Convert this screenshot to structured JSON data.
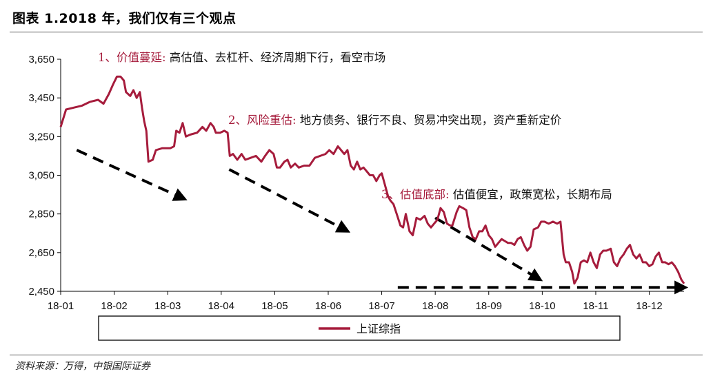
{
  "title": "图表 1.2018 年，我们仅有三个观点",
  "source": "资料来源：万得，中银国际证券",
  "colors": {
    "series": "#a61c3c",
    "arrow": "#000000",
    "rule": "#555555"
  },
  "chart_data": {
    "type": "line",
    "ylim": [
      2450,
      3650
    ],
    "yticks": [
      "2,450",
      "2,650",
      "2,850",
      "3,050",
      "3,250",
      "3,450",
      "3,650"
    ],
    "ytick_values": [
      2450,
      2650,
      2850,
      3050,
      3250,
      3450,
      3650
    ],
    "xticks": [
      "18-01",
      "18-02",
      "18-03",
      "18-04",
      "18-05",
      "18-06",
      "18-07",
      "18-08",
      "18-09",
      "18-10",
      "18-11",
      "18-12"
    ],
    "x_month_range": [
      0,
      11.65
    ],
    "grid": false,
    "legend": {
      "position": "bottom",
      "label": "上证综指"
    },
    "series": [
      {
        "name": "上证综指",
        "color": "#a61c3c",
        "points": [
          [
            0.0,
            3300
          ],
          [
            0.1,
            3390
          ],
          [
            0.25,
            3400
          ],
          [
            0.4,
            3410
          ],
          [
            0.55,
            3430
          ],
          [
            0.7,
            3440
          ],
          [
            0.8,
            3420
          ],
          [
            0.9,
            3470
          ],
          [
            0.98,
            3520
          ],
          [
            1.05,
            3560
          ],
          [
            1.12,
            3560
          ],
          [
            1.18,
            3540
          ],
          [
            1.22,
            3480
          ],
          [
            1.3,
            3460
          ],
          [
            1.36,
            3490
          ],
          [
            1.42,
            3450
          ],
          [
            1.48,
            3480
          ],
          [
            1.52,
            3400
          ],
          [
            1.56,
            3330
          ],
          [
            1.6,
            3280
          ],
          [
            1.64,
            3120
          ],
          [
            1.72,
            3130
          ],
          [
            1.78,
            3180
          ],
          [
            1.9,
            3190
          ],
          [
            2.05,
            3190
          ],
          [
            2.12,
            3200
          ],
          [
            2.16,
            3280
          ],
          [
            2.22,
            3270
          ],
          [
            2.28,
            3320
          ],
          [
            2.34,
            3250
          ],
          [
            2.42,
            3260
          ],
          [
            2.55,
            3270
          ],
          [
            2.65,
            3300
          ],
          [
            2.72,
            3280
          ],
          [
            2.8,
            3320
          ],
          [
            2.86,
            3300
          ],
          [
            2.9,
            3270
          ],
          [
            2.98,
            3270
          ],
          [
            3.06,
            3280
          ],
          [
            3.12,
            3270
          ],
          [
            3.16,
            3150
          ],
          [
            3.22,
            3160
          ],
          [
            3.3,
            3130
          ],
          [
            3.38,
            3160
          ],
          [
            3.45,
            3130
          ],
          [
            3.55,
            3140
          ],
          [
            3.65,
            3150
          ],
          [
            3.75,
            3120
          ],
          [
            3.82,
            3150
          ],
          [
            3.9,
            3180
          ],
          [
            3.98,
            3160
          ],
          [
            4.04,
            3090
          ],
          [
            4.1,
            3090
          ],
          [
            4.18,
            3120
          ],
          [
            4.24,
            3130
          ],
          [
            4.3,
            3090
          ],
          [
            4.38,
            3110
          ],
          [
            4.45,
            3090
          ],
          [
            4.55,
            3100
          ],
          [
            4.65,
            3100
          ],
          [
            4.75,
            3140
          ],
          [
            4.85,
            3150
          ],
          [
            4.95,
            3160
          ],
          [
            5.02,
            3180
          ],
          [
            5.1,
            3160
          ],
          [
            5.18,
            3200
          ],
          [
            5.24,
            3180
          ],
          [
            5.3,
            3160
          ],
          [
            5.36,
            3180
          ],
          [
            5.42,
            3100
          ],
          [
            5.48,
            3080
          ],
          [
            5.54,
            3120
          ],
          [
            5.6,
            3080
          ],
          [
            5.66,
            3090
          ],
          [
            5.72,
            3070
          ],
          [
            5.78,
            3050
          ],
          [
            5.84,
            3050
          ],
          [
            5.9,
            3020
          ],
          [
            5.96,
            3050
          ],
          [
            6.0,
            3060
          ],
          [
            6.04,
            3020
          ],
          [
            6.08,
            2980
          ],
          [
            6.12,
            2940
          ],
          [
            6.16,
            2920
          ],
          [
            6.22,
            2900
          ],
          [
            6.28,
            2850
          ],
          [
            6.35,
            2790
          ],
          [
            6.4,
            2780
          ],
          [
            6.45,
            2850
          ],
          [
            6.52,
            2760
          ],
          [
            6.58,
            2740
          ],
          [
            6.65,
            2830
          ],
          [
            6.72,
            2820
          ],
          [
            6.8,
            2840
          ],
          [
            6.86,
            2800
          ],
          [
            6.92,
            2780
          ],
          [
            6.98,
            2800
          ],
          [
            7.04,
            2820
          ],
          [
            7.1,
            2880
          ],
          [
            7.16,
            2860
          ],
          [
            7.22,
            2800
          ],
          [
            7.28,
            2790
          ],
          [
            7.32,
            2790
          ],
          [
            7.4,
            2860
          ],
          [
            7.45,
            2890
          ],
          [
            7.52,
            2880
          ],
          [
            7.58,
            2870
          ],
          [
            7.64,
            2780
          ],
          [
            7.7,
            2730
          ],
          [
            7.76,
            2720
          ],
          [
            7.82,
            2760
          ],
          [
            7.88,
            2760
          ],
          [
            7.94,
            2790
          ],
          [
            8.0,
            2740
          ],
          [
            8.06,
            2720
          ],
          [
            8.12,
            2680
          ],
          [
            8.18,
            2700
          ],
          [
            8.24,
            2720
          ],
          [
            8.3,
            2710
          ],
          [
            8.36,
            2700
          ],
          [
            8.42,
            2700
          ],
          [
            8.48,
            2690
          ],
          [
            8.54,
            2720
          ],
          [
            8.6,
            2730
          ],
          [
            8.66,
            2690
          ],
          [
            8.72,
            2660
          ],
          [
            8.78,
            2680
          ],
          [
            8.84,
            2770
          ],
          [
            8.92,
            2780
          ],
          [
            8.98,
            2810
          ],
          [
            9.04,
            2810
          ],
          [
            9.12,
            2800
          ],
          [
            9.2,
            2810
          ],
          [
            9.28,
            2800
          ],
          [
            9.34,
            2810
          ],
          [
            9.4,
            2640
          ],
          [
            9.44,
            2600
          ],
          [
            9.5,
            2600
          ],
          [
            9.56,
            2550
          ],
          [
            9.6,
            2490
          ],
          [
            9.66,
            2520
          ],
          [
            9.72,
            2600
          ],
          [
            9.78,
            2610
          ],
          [
            9.84,
            2600
          ],
          [
            9.9,
            2650
          ],
          [
            9.96,
            2600
          ],
          [
            10.02,
            2570
          ],
          [
            10.08,
            2640
          ],
          [
            10.14,
            2660
          ],
          [
            10.2,
            2660
          ],
          [
            10.28,
            2670
          ],
          [
            10.34,
            2600
          ],
          [
            10.4,
            2580
          ],
          [
            10.46,
            2620
          ],
          [
            10.52,
            2640
          ],
          [
            10.58,
            2670
          ],
          [
            10.64,
            2690
          ],
          [
            10.7,
            2640
          ],
          [
            10.76,
            2620
          ],
          [
            10.82,
            2640
          ],
          [
            10.88,
            2600
          ],
          [
            10.94,
            2600
          ],
          [
            11.0,
            2580
          ],
          [
            11.06,
            2590
          ],
          [
            11.12,
            2630
          ],
          [
            11.18,
            2650
          ],
          [
            11.24,
            2600
          ],
          [
            11.3,
            2600
          ],
          [
            11.36,
            2590
          ],
          [
            11.42,
            2600
          ],
          [
            11.48,
            2580
          ],
          [
            11.54,
            2550
          ],
          [
            11.6,
            2510
          ],
          [
            11.65,
            2490
          ]
        ]
      }
    ],
    "annotations": [
      {
        "prefix": "1、价值蔓延:",
        "text": " 高估值、去杠杆、经济周期下行，看空市场"
      },
      {
        "prefix": "2、风险重估:",
        "text": " 地方债务、银行不良、贸易冲突出现，资产重新定价"
      },
      {
        "prefix": "3、估值底部:",
        "text": " 估值便宜，政策宽松，长期布局"
      }
    ],
    "trend_arrows": [
      {
        "from": [
          0.3,
          3180
        ],
        "to": [
          2.25,
          2935
        ]
      },
      {
        "from": [
          3.15,
          3080
        ],
        "to": [
          5.3,
          2770
        ]
      },
      {
        "from": [
          7.0,
          2830
        ],
        "to": [
          8.9,
          2520
        ]
      },
      {
        "from": [
          6.3,
          2470
        ],
        "to": [
          11.6,
          2470
        ]
      }
    ]
  }
}
